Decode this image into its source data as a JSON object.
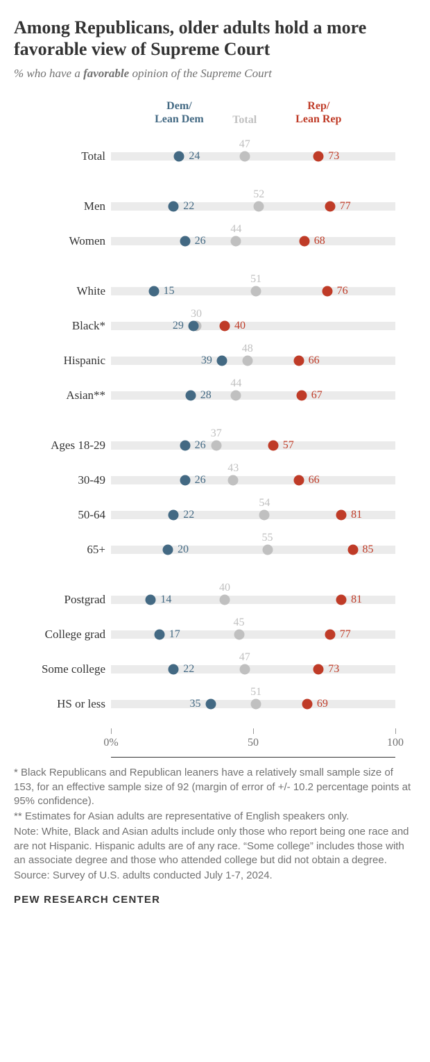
{
  "title": "Among Republicans, older adults hold a more favorable view of Supreme Court",
  "subtitle_prefix": "% who have a ",
  "subtitle_emph": "favorable",
  "subtitle_suffix": " opinion of the Supreme Court",
  "colors": {
    "dem": "#436983",
    "total": "#c0c0c0",
    "rep": "#bf3b27",
    "track": "#ebebeb",
    "text": "#333333",
    "muted": "#717171"
  },
  "series": {
    "dem": {
      "label": "Dem/\nLean Dem",
      "label_pos": 24
    },
    "total": {
      "label": "Total",
      "label_pos": 47
    },
    "rep": {
      "label": "Rep/\nLean Rep",
      "label_pos": 73
    }
  },
  "axis": {
    "min": 0,
    "max": 100,
    "ticks": [
      0,
      50,
      100
    ],
    "tick_labels": [
      "0%",
      "50",
      "100"
    ]
  },
  "groups": [
    {
      "rows": [
        {
          "label": "Total",
          "dem": 24,
          "total": 47,
          "rep": 73,
          "total_above": true
        }
      ]
    },
    {
      "rows": [
        {
          "label": "Men",
          "dem": 22,
          "total": 52,
          "rep": 77,
          "total_above": true
        },
        {
          "label": "Women",
          "dem": 26,
          "total": 44,
          "rep": 68,
          "total_above": true
        }
      ]
    },
    {
      "rows": [
        {
          "label": "White",
          "dem": 15,
          "total": 51,
          "rep": 76,
          "total_above": true
        },
        {
          "label": "Black*",
          "dem": 29,
          "total": 30,
          "rep": 40,
          "total_above": true,
          "dem_left": true
        },
        {
          "label": "Hispanic",
          "dem": 39,
          "total": 48,
          "rep": 66,
          "total_above": true,
          "dem_left": true
        },
        {
          "label": "Asian**",
          "dem": 28,
          "total": 44,
          "rep": 67,
          "total_above": true
        }
      ]
    },
    {
      "rows": [
        {
          "label": "Ages 18-29",
          "dem": 26,
          "total": 37,
          "rep": 57,
          "total_above": true
        },
        {
          "label": "30-49",
          "dem": 26,
          "total": 43,
          "rep": 66,
          "total_above": true
        },
        {
          "label": "50-64",
          "dem": 22,
          "total": 54,
          "rep": 81,
          "total_above": true
        },
        {
          "label": "65+",
          "dem": 20,
          "total": 55,
          "rep": 85,
          "total_above": true
        }
      ]
    },
    {
      "rows": [
        {
          "label": "Postgrad",
          "dem": 14,
          "total": 40,
          "rep": 81,
          "total_above": true
        },
        {
          "label": "College grad",
          "dem": 17,
          "total": 45,
          "rep": 77,
          "total_above": true
        },
        {
          "label": "Some college",
          "dem": 22,
          "total": 47,
          "rep": 73,
          "total_above": true
        },
        {
          "label": "HS or less",
          "dem": 35,
          "total": 51,
          "rep": 69,
          "total_above": true,
          "dem_left": true
        }
      ]
    }
  ],
  "footnotes": [
    "* Black Republicans and Republican leaners have a relatively small sample size of 153, for an effective sample size of 92 (margin of error of +/- 10.2 percentage points at 95% confidence).",
    "** Estimates for Asian adults are representative of English speakers only.",
    "Note: White, Black and Asian adults include only those who report being one race and are not Hispanic. Hispanic adults are of any race. “Some college” includes those with an associate degree and those who attended college but did not obtain a degree.",
    "Source: Survey of U.S. adults conducted July 1-7, 2024."
  ],
  "org": "PEW RESEARCH CENTER"
}
